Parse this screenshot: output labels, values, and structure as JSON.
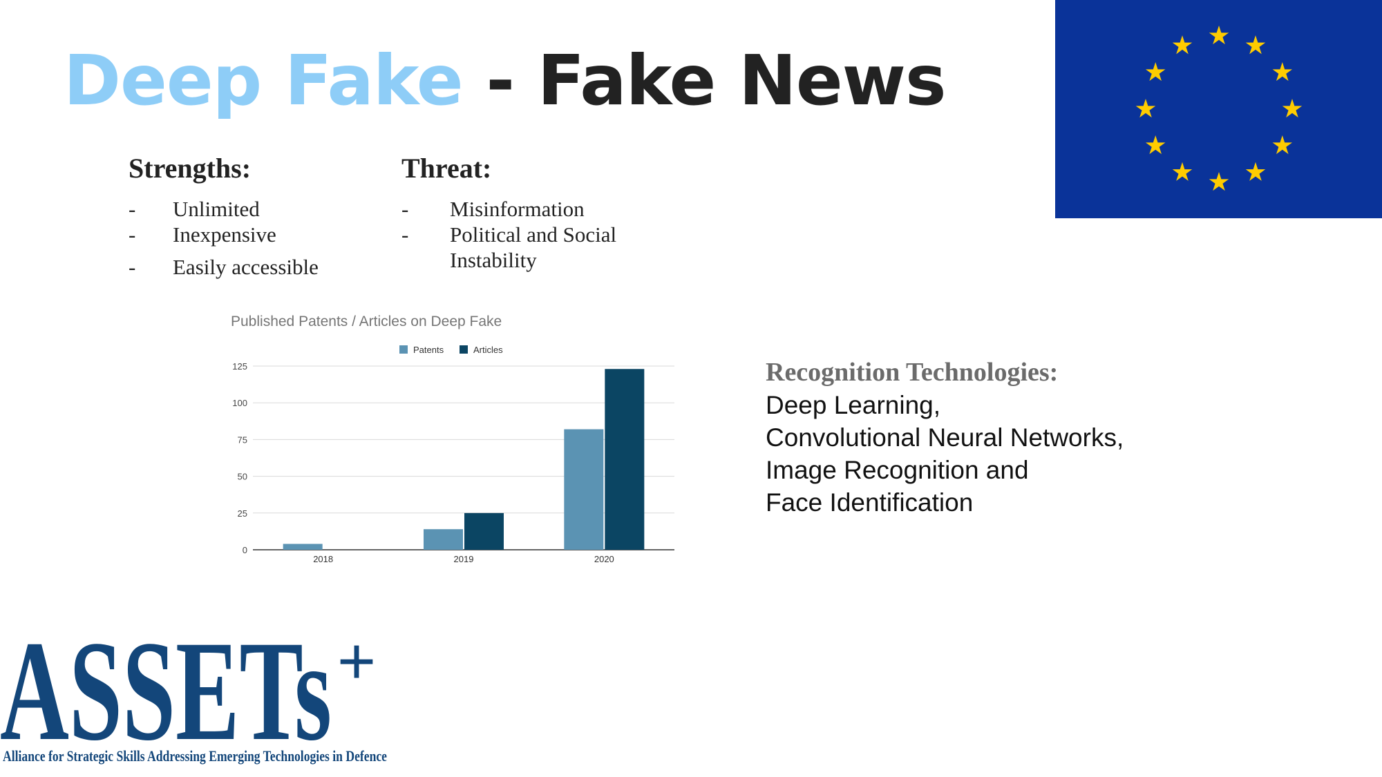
{
  "title": {
    "part1": "Deep Fake",
    "sep": " - ",
    "part2": "Fake News"
  },
  "strengths": {
    "heading": "Strengths:",
    "items": [
      {
        "dash": "-",
        "text": "Unlimited"
      },
      {
        "dash": "-",
        "text": "Inexpensive"
      },
      {
        "dash": "-",
        "text": "Easily accessible"
      }
    ]
  },
  "threat": {
    "heading": "Threat:",
    "items": [
      {
        "dash": "-",
        "text": "Misinformation"
      },
      {
        "dash": "-",
        "text": "Political and Social"
      },
      {
        "dash": "",
        "text": "Instability"
      }
    ]
  },
  "recognition": {
    "heading": "Recognition Technologies:",
    "lines": [
      "Deep Learning,",
      "Convolutional Neural Networks,",
      "Image Recognition and",
      "Face Identification"
    ]
  },
  "logo": {
    "wordmark": "ASSETs",
    "plus": "+",
    "tagline": "Alliance for Strategic Skills Addressing Emerging Technologies in Defence"
  },
  "flag": {
    "background": "#0a3399",
    "star_color": "#ffcc00",
    "star_count": 12
  },
  "chart_data": {
    "type": "bar",
    "title": "Published Patents / Articles on Deep Fake",
    "categories": [
      "2018",
      "2019",
      "2020"
    ],
    "series": [
      {
        "name": "Patents",
        "values": [
          4,
          14,
          82
        ],
        "color": "#5b93b3"
      },
      {
        "name": "Articles",
        "values": [
          0,
          25,
          123
        ],
        "color": "#0b4563"
      }
    ],
    "yticks": [
      "0",
      "25",
      "50",
      "75",
      "100",
      "125"
    ],
    "ylim": [
      0,
      125
    ],
    "xlabel": "",
    "ylabel": "",
    "legend": "top",
    "grid": true
  }
}
